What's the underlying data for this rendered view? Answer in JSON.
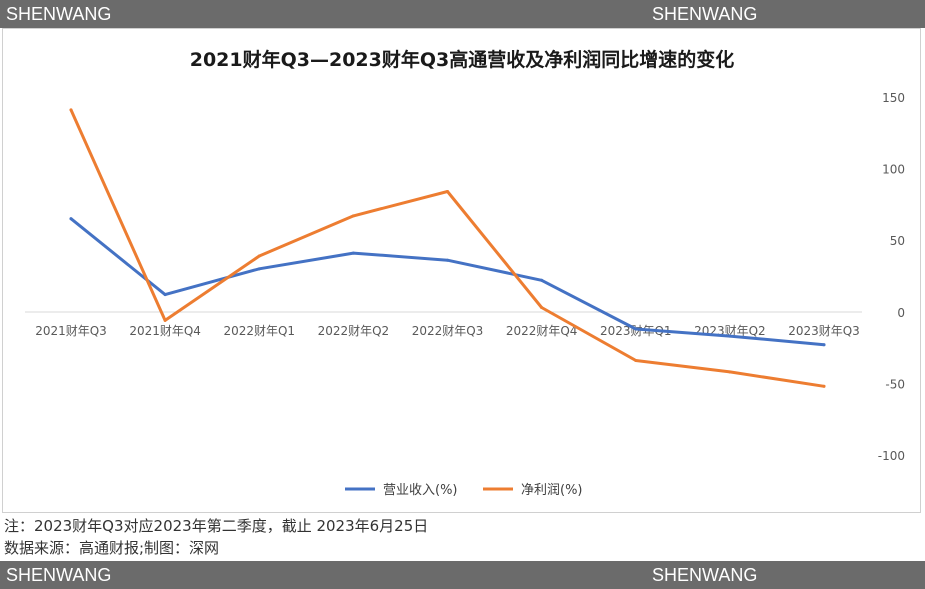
{
  "watermark": {
    "left": "SHENWANG",
    "right": "SHENWANG"
  },
  "notes": {
    "line1": "注：2023财年Q3对应2023年第二季度，截止 2023年6月25日",
    "line2": "数据来源：高通财报;制图：深网"
  },
  "chart_data": {
    "type": "line",
    "title": "2021财年Q3—2023财年Q3高通营收及净利润同比增速的变化",
    "categories": [
      "2021财年Q3",
      "2021财年Q4",
      "2022财年Q1",
      "2022财年Q2",
      "2022财年Q3",
      "2022财年Q4",
      "2023财年Q1",
      "2023财年Q2",
      "2023财年Q3"
    ],
    "series": [
      {
        "name": "营业收入(%)",
        "color": "#4472c4",
        "values": [
          65,
          12,
          30,
          41,
          36,
          22,
          -12,
          -17,
          -23
        ]
      },
      {
        "name": "净利润(%)",
        "color": "#ed7d31",
        "values": [
          141,
          -6,
          39,
          67,
          84,
          3,
          -34,
          -42,
          -52
        ]
      }
    ],
    "ylim": [
      -100,
      150
    ],
    "yticks": [
      150,
      100,
      50,
      0,
      -50,
      -100
    ],
    "grid": false,
    "legend": "bottom",
    "y_axis_side": "right"
  }
}
